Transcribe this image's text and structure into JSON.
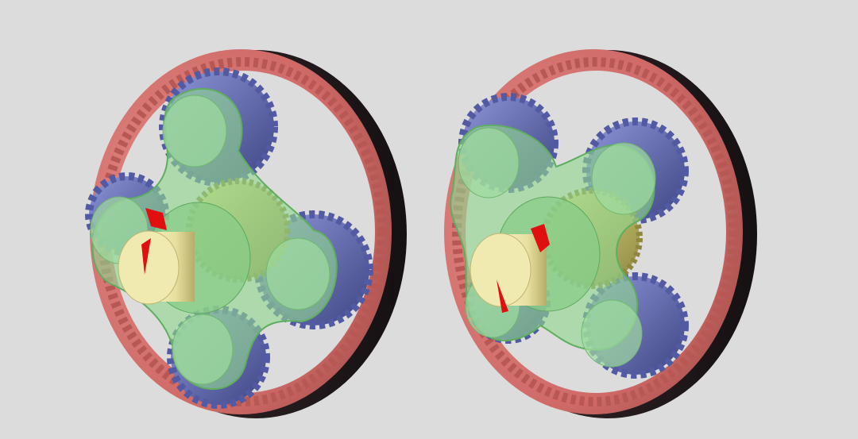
{
  "scene": {
    "background": "#dcdcdc",
    "subject": "planetary-gearsets",
    "colors": {
      "ring_gear": "#d9736f",
      "ring_shadow": "#2b2224",
      "planet_gears": "#6f78c4",
      "carrier": "#8fd68f",
      "sun_gear": "#c9c26a",
      "input_shaft": "#ece6a8",
      "marker": "#e01010"
    }
  }
}
